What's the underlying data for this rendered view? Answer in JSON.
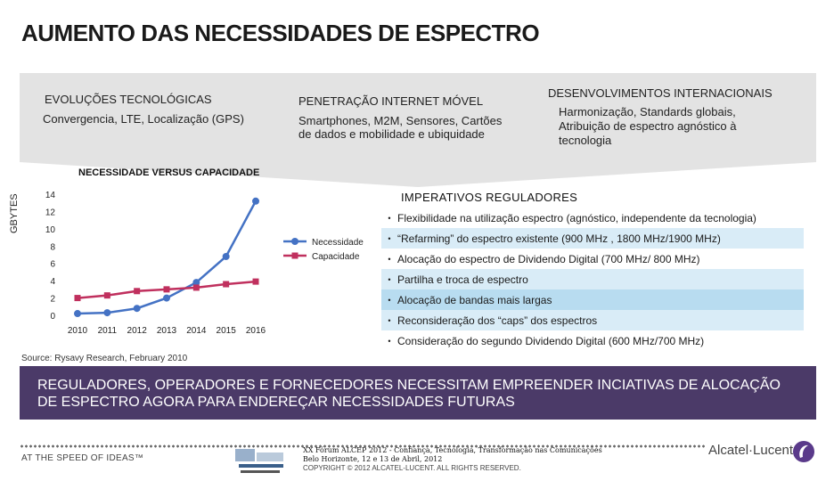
{
  "title": "AUMENTO DAS NECESSIDADES DE ESPECTRO",
  "columns": [
    {
      "heading": "EVOLUÇÕES TECNOLÓGICAS",
      "lines": [
        "Convergencia, LTE, Localização (GPS)"
      ]
    },
    {
      "heading": "PENETRAÇÃO INTERNET MÓVEL",
      "lines": [
        "Smartphones, M2M, Sensores, Cartões",
        "de dados e mobilidade e ubiquidade"
      ]
    },
    {
      "heading": "DESENVOLVIMENTOS INTERNACIONAIS",
      "lines": [
        "Harmonização, Standards globais,",
        "Atribuição de espectro agnóstico à",
        "tecnologia"
      ]
    }
  ],
  "chart_data": {
    "type": "line",
    "title": "NECESSIDADE VERSUS CAPACIDADE",
    "ylabel": "GBYTES",
    "xlabel": "",
    "x": [
      "2010",
      "2011",
      "2012",
      "2013",
      "2014",
      "2015",
      "2016"
    ],
    "ylim": [
      0,
      14
    ],
    "yticks": [
      0,
      2,
      4,
      6,
      8,
      10,
      12,
      14
    ],
    "legend_position": "right",
    "series": [
      {
        "name": "Necessidade",
        "color": "#4472c4",
        "marker": "circle",
        "values": [
          0.2,
          0.3,
          0.8,
          2.0,
          3.8,
          6.8,
          13.2
        ]
      },
      {
        "name": "Capacidade",
        "color": "#c0305e",
        "marker": "square",
        "values": [
          2.0,
          2.3,
          2.8,
          3.0,
          3.2,
          3.6,
          3.9
        ]
      }
    ]
  },
  "regulatory": {
    "title": "IMPERATIVOS REGULADORES",
    "bullet": "•",
    "items": [
      "Flexibilidade na utilização espectro (agnóstico, independente da tecnologia)",
      "“Refarming” do espectro existente (900 MHz , 1800 MHz/1900 MHz)",
      "Alocação do espectro de Dividendo Digital (700 MHz/ 800 MHz)",
      "Partilha e troca de espectro",
      "Alocação de bandas mais largas",
      "Reconsideração dos “caps” dos espectros",
      "Consideração do segundo Dividendo Digital (600 MHz/700 MHz)"
    ],
    "row_colors": [
      "#ffffff",
      "#d9ecf7",
      "#ffffff",
      "#d9ecf7",
      "#b8dcf0",
      "#d9ecf7",
      "#ffffff"
    ]
  },
  "source": "Source: Rysavy Research, February 2010",
  "banner": {
    "lines": [
      "REGULADORES, OPERADORES E FORNECEDORES NECESSITAM EMPREENDER INCIATIVAS DE ALOCAÇÃO",
      "DE ESPECTRO AGORA PARA ENDEREÇAR NECESSIDADES FUTURAS"
    ]
  },
  "footer": {
    "tagline": "AT THE SPEED OF IDEAS™",
    "event_line1": "XX Fórum ALCEP 2012 - Confiança, Tecnologia, Transformação nas Comunicações",
    "event_line2": "Belo Horizonte, 12 e 13 de Abril, 2012",
    "copyright": "COPYRIGHT © 2012 ALCATEL-LUCENT. ALL RIGHTS RESERVED.",
    "brand": "Alcatel·Lucent",
    "colors": {
      "brand": "#5a3a8a",
      "banner": "#4b3a68"
    }
  }
}
